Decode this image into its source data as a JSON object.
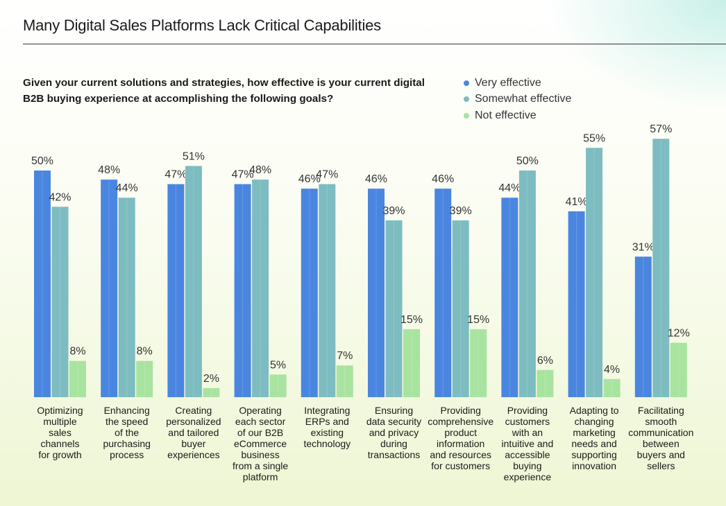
{
  "title": "Many Digital Sales Platforms Lack Critical Capabilities",
  "question": "Given your current solutions and strategies, how effective is your current digital B2B buying experience at accomplishing the following goals?",
  "colors": {
    "very": "#4a86e0",
    "somewhat": "#7dbcc0",
    "not": "#a9e3a0"
  },
  "chart_data": {
    "type": "bar",
    "ylim": [
      0,
      60
    ],
    "legend_position": "top-right",
    "grid": false,
    "categories": [
      "Optimizing multiple sales channels for growth",
      "Enhancing the speed of the purchasing process",
      "Creating personalized and tailored buyer experiences",
      "Operating each sector of our B2B eCommerce business from a single platform",
      "Integrating ERPs and existing technology",
      "Ensuring data security and privacy during transactions",
      "Providing comprehensive product information and resources for customers",
      "Providing customers with an intuitive and accessible buying experience",
      "Adapting to changing marketing needs and supporting innovation",
      "Facilitating smooth communication between buyers and sellers"
    ],
    "category_lines": [
      [
        "Optimizing",
        "multiple",
        "sales",
        "channels",
        "for growth"
      ],
      [
        "Enhancing",
        "the speed",
        "of the",
        "purchasing",
        "process"
      ],
      [
        "Creating",
        "personalized",
        "and tailored",
        "buyer",
        "experiences"
      ],
      [
        "Operating",
        "each sector",
        "of our B2B",
        "eCommerce",
        "business",
        "from a single",
        "platform"
      ],
      [
        "Integrating",
        "ERPs and",
        "existing",
        "technology"
      ],
      [
        "Ensuring",
        "data security",
        "and privacy",
        "during",
        "transactions"
      ],
      [
        "Providing",
        "comprehensive",
        "product",
        "information",
        "and resources",
        "for customers"
      ],
      [
        "Providing",
        "customers",
        "with an",
        "intuitive and",
        "accessible",
        "buying",
        "experience"
      ],
      [
        "Adapting to",
        "changing",
        "marketing",
        "needs and",
        "supporting",
        "innovation"
      ],
      [
        "Facilitating",
        "smooth",
        "communication",
        "between",
        "buyers and",
        "sellers"
      ]
    ],
    "series": [
      {
        "name": "Very effective",
        "key": "very",
        "values": [
          50,
          48,
          47,
          47,
          46,
          46,
          46,
          44,
          41,
          31
        ]
      },
      {
        "name": "Somewhat effective",
        "key": "somewhat",
        "values": [
          42,
          44,
          51,
          48,
          47,
          39,
          39,
          50,
          55,
          57
        ]
      },
      {
        "name": "Not effective",
        "key": "not",
        "values": [
          8,
          8,
          2,
          5,
          7,
          15,
          15,
          6,
          4,
          12
        ]
      }
    ],
    "value_suffix": "%"
  }
}
